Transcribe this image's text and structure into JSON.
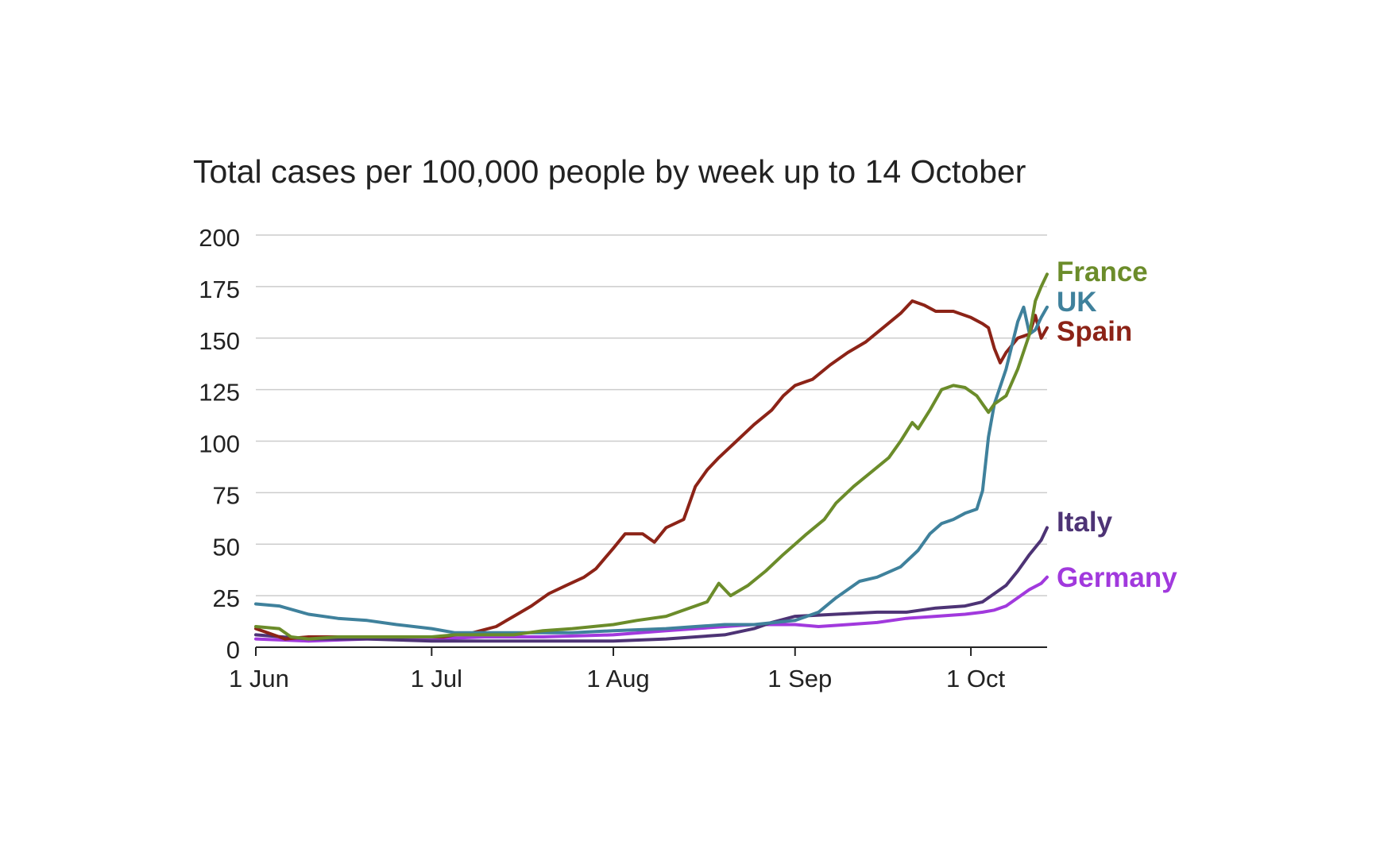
{
  "chart_data": {
    "type": "line",
    "title": "Total cases per 100,000 people by week up to 14 October",
    "xlabel": "",
    "ylabel": "",
    "x_start": "2020-06-01",
    "x_end": "2020-10-14",
    "ylim": [
      0,
      200
    ],
    "y_ticks": [
      0,
      25,
      50,
      75,
      100,
      125,
      150,
      175,
      200
    ],
    "x_ticks": [
      {
        "date": "2020-06-01",
        "label": "1 Jun"
      },
      {
        "date": "2020-07-01",
        "label": "1 Jul"
      },
      {
        "date": "2020-08-01",
        "label": "1 Aug"
      },
      {
        "date": "2020-09-01",
        "label": "1 Sep"
      },
      {
        "date": "2020-10-01",
        "label": "1 Oct"
      }
    ],
    "grid": true,
    "legend": "direct labels at line ends (right)",
    "series": [
      {
        "name": "France",
        "color": "#6b8c2a",
        "points": [
          [
            "2020-06-01",
            10
          ],
          [
            "2020-06-05",
            9
          ],
          [
            "2020-06-07",
            5
          ],
          [
            "2020-06-10",
            4
          ],
          [
            "2020-06-15",
            5
          ],
          [
            "2020-06-20",
            5
          ],
          [
            "2020-06-25",
            5
          ],
          [
            "2020-07-01",
            5
          ],
          [
            "2020-07-05",
            6
          ],
          [
            "2020-07-10",
            6
          ],
          [
            "2020-07-15",
            6
          ],
          [
            "2020-07-20",
            8
          ],
          [
            "2020-07-25",
            9
          ],
          [
            "2020-08-01",
            11
          ],
          [
            "2020-08-05",
            13
          ],
          [
            "2020-08-10",
            15
          ],
          [
            "2020-08-15",
            20
          ],
          [
            "2020-08-17",
            22
          ],
          [
            "2020-08-19",
            31
          ],
          [
            "2020-08-21",
            25
          ],
          [
            "2020-08-24",
            30
          ],
          [
            "2020-08-27",
            37
          ],
          [
            "2020-08-30",
            45
          ],
          [
            "2020-09-01",
            50
          ],
          [
            "2020-09-03",
            55
          ],
          [
            "2020-09-06",
            62
          ],
          [
            "2020-09-08",
            70
          ],
          [
            "2020-09-11",
            78
          ],
          [
            "2020-09-14",
            85
          ],
          [
            "2020-09-17",
            92
          ],
          [
            "2020-09-19",
            100
          ],
          [
            "2020-09-21",
            109
          ],
          [
            "2020-09-22",
            106
          ],
          [
            "2020-09-24",
            115
          ],
          [
            "2020-09-26",
            125
          ],
          [
            "2020-09-28",
            127
          ],
          [
            "2020-09-30",
            126
          ],
          [
            "2020-10-02",
            122
          ],
          [
            "2020-10-03",
            118
          ],
          [
            "2020-10-04",
            114
          ],
          [
            "2020-10-05",
            118
          ],
          [
            "2020-10-07",
            122
          ],
          [
            "2020-10-09",
            135
          ],
          [
            "2020-10-11",
            152
          ],
          [
            "2020-10-12",
            168
          ],
          [
            "2020-10-13",
            175
          ],
          [
            "2020-10-14",
            181
          ]
        ]
      },
      {
        "name": "UK",
        "color": "#3f819c",
        "points": [
          [
            "2020-06-01",
            21
          ],
          [
            "2020-06-05",
            20
          ],
          [
            "2020-06-10",
            16
          ],
          [
            "2020-06-15",
            14
          ],
          [
            "2020-06-20",
            13
          ],
          [
            "2020-06-25",
            11
          ],
          [
            "2020-07-01",
            9
          ],
          [
            "2020-07-05",
            7
          ],
          [
            "2020-07-10",
            7
          ],
          [
            "2020-07-15",
            7
          ],
          [
            "2020-07-20",
            7
          ],
          [
            "2020-07-25",
            7
          ],
          [
            "2020-08-01",
            8
          ],
          [
            "2020-08-10",
            9
          ],
          [
            "2020-08-15",
            10
          ],
          [
            "2020-08-20",
            11
          ],
          [
            "2020-08-25",
            11
          ],
          [
            "2020-09-01",
            13
          ],
          [
            "2020-09-05",
            17
          ],
          [
            "2020-09-08",
            24
          ],
          [
            "2020-09-12",
            32
          ],
          [
            "2020-09-15",
            34
          ],
          [
            "2020-09-19",
            39
          ],
          [
            "2020-09-22",
            47
          ],
          [
            "2020-09-24",
            55
          ],
          [
            "2020-09-26",
            60
          ],
          [
            "2020-09-28",
            62
          ],
          [
            "2020-09-30",
            65
          ],
          [
            "2020-10-02",
            67
          ],
          [
            "2020-10-03",
            76
          ],
          [
            "2020-10-04",
            102
          ],
          [
            "2020-10-05",
            118
          ],
          [
            "2020-10-07",
            135
          ],
          [
            "2020-10-09",
            158
          ],
          [
            "2020-10-10",
            165
          ],
          [
            "2020-10-11",
            152
          ],
          [
            "2020-10-12",
            154
          ],
          [
            "2020-10-13",
            160
          ],
          [
            "2020-10-14",
            165
          ]
        ]
      },
      {
        "name": "Spain",
        "color": "#8c2317",
        "points": [
          [
            "2020-06-01",
            9
          ],
          [
            "2020-06-03",
            7
          ],
          [
            "2020-06-06",
            4
          ],
          [
            "2020-06-10",
            5
          ],
          [
            "2020-06-15",
            5
          ],
          [
            "2020-06-20",
            5
          ],
          [
            "2020-06-25",
            5
          ],
          [
            "2020-07-01",
            5
          ],
          [
            "2020-07-03",
            5
          ],
          [
            "2020-07-05",
            6
          ],
          [
            "2020-07-08",
            7
          ],
          [
            "2020-07-12",
            10
          ],
          [
            "2020-07-15",
            15
          ],
          [
            "2020-07-18",
            20
          ],
          [
            "2020-07-21",
            26
          ],
          [
            "2020-07-24",
            30
          ],
          [
            "2020-07-27",
            34
          ],
          [
            "2020-07-29",
            38
          ],
          [
            "2020-08-01",
            48
          ],
          [
            "2020-08-03",
            55
          ],
          [
            "2020-08-06",
            55
          ],
          [
            "2020-08-08",
            51
          ],
          [
            "2020-08-10",
            58
          ],
          [
            "2020-08-13",
            62
          ],
          [
            "2020-08-15",
            78
          ],
          [
            "2020-08-17",
            86
          ],
          [
            "2020-08-19",
            92
          ],
          [
            "2020-08-22",
            100
          ],
          [
            "2020-08-25",
            108
          ],
          [
            "2020-08-28",
            115
          ],
          [
            "2020-08-30",
            122
          ],
          [
            "2020-09-01",
            127
          ],
          [
            "2020-09-04",
            130
          ],
          [
            "2020-09-07",
            137
          ],
          [
            "2020-09-10",
            143
          ],
          [
            "2020-09-13",
            148
          ],
          [
            "2020-09-16",
            155
          ],
          [
            "2020-09-19",
            162
          ],
          [
            "2020-09-21",
            168
          ],
          [
            "2020-09-23",
            166
          ],
          [
            "2020-09-25",
            163
          ],
          [
            "2020-09-28",
            163
          ],
          [
            "2020-10-01",
            160
          ],
          [
            "2020-10-03",
            157
          ],
          [
            "2020-10-04",
            155
          ],
          [
            "2020-10-05",
            145
          ],
          [
            "2020-10-06",
            138
          ],
          [
            "2020-10-07",
            143
          ],
          [
            "2020-10-09",
            150
          ],
          [
            "2020-10-11",
            152
          ],
          [
            "2020-10-12",
            161
          ],
          [
            "2020-10-13",
            150
          ],
          [
            "2020-10-14",
            155
          ]
        ]
      },
      {
        "name": "Italy",
        "color": "#4d3375",
        "points": [
          [
            "2020-06-01",
            6
          ],
          [
            "2020-06-10",
            4
          ],
          [
            "2020-06-20",
            4
          ],
          [
            "2020-07-01",
            3
          ],
          [
            "2020-07-10",
            3
          ],
          [
            "2020-07-20",
            3
          ],
          [
            "2020-08-01",
            3
          ],
          [
            "2020-08-10",
            4
          ],
          [
            "2020-08-20",
            6
          ],
          [
            "2020-08-25",
            9
          ],
          [
            "2020-08-28",
            12
          ],
          [
            "2020-09-01",
            15
          ],
          [
            "2020-09-08",
            16
          ],
          [
            "2020-09-15",
            17
          ],
          [
            "2020-09-20",
            17
          ],
          [
            "2020-09-25",
            19
          ],
          [
            "2020-09-30",
            20
          ],
          [
            "2020-10-03",
            22
          ],
          [
            "2020-10-05",
            26
          ],
          [
            "2020-10-07",
            30
          ],
          [
            "2020-10-09",
            37
          ],
          [
            "2020-10-11",
            45
          ],
          [
            "2020-10-13",
            52
          ],
          [
            "2020-10-14",
            58
          ]
        ]
      },
      {
        "name": "Germany",
        "color": "#a139dd",
        "points": [
          [
            "2020-06-01",
            4
          ],
          [
            "2020-06-10",
            3
          ],
          [
            "2020-06-20",
            4
          ],
          [
            "2020-07-01",
            4
          ],
          [
            "2020-07-10",
            5
          ],
          [
            "2020-07-20",
            5
          ],
          [
            "2020-08-01",
            6
          ],
          [
            "2020-08-10",
            8
          ],
          [
            "2020-08-20",
            10
          ],
          [
            "2020-08-25",
            11
          ],
          [
            "2020-09-01",
            11
          ],
          [
            "2020-09-05",
            10
          ],
          [
            "2020-09-10",
            11
          ],
          [
            "2020-09-15",
            12
          ],
          [
            "2020-09-20",
            14
          ],
          [
            "2020-09-25",
            15
          ],
          [
            "2020-09-30",
            16
          ],
          [
            "2020-10-03",
            17
          ],
          [
            "2020-10-05",
            18
          ],
          [
            "2020-10-07",
            20
          ],
          [
            "2020-10-09",
            24
          ],
          [
            "2020-10-11",
            28
          ],
          [
            "2020-10-13",
            31
          ],
          [
            "2020-10-14",
            34
          ]
        ]
      }
    ]
  }
}
